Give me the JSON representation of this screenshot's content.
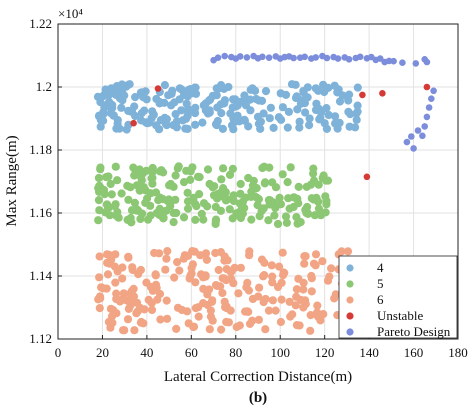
{
  "chart_data": {
    "type": "scatter",
    "xlabel": "Lateral Correction Distance(m)",
    "ylabel": "Max Range(m)",
    "exponent_label": "×10⁴",
    "caption": "(b)",
    "xlim": [
      0,
      180
    ],
    "ylim": [
      11200,
      12200
    ],
    "x_ticks": [
      "0",
      "20",
      "40",
      "60",
      "80",
      "100",
      "120",
      "140",
      "160",
      "180"
    ],
    "y_ticks": [
      "1.12",
      "1.14",
      "1.16",
      "1.18",
      "1.2",
      "1.22"
    ],
    "grid": true,
    "legend_position": "bottom-right",
    "series": [
      {
        "name": "4",
        "color": "#7fb2d8",
        "points": []
      },
      {
        "name": "5",
        "color": "#8cc774",
        "points": []
      },
      {
        "name": "6",
        "color": "#f2a585",
        "points": []
      },
      {
        "name": "Unstable",
        "color": "#d63a36",
        "points": [
          [
            34,
            11885
          ],
          [
            45,
            11995
          ],
          [
            137,
            11975
          ],
          [
            146,
            11980
          ],
          [
            139,
            11715
          ],
          [
            166,
            12000
          ]
        ]
      },
      {
        "name": "Pareto Design",
        "color": "#7b8ddb",
        "points": [
          [
            70,
            12085
          ],
          [
            72,
            12093
          ],
          [
            75,
            12098
          ],
          [
            78,
            12095
          ],
          [
            80,
            12090
          ],
          [
            82,
            12097
          ],
          [
            85,
            12094
          ],
          [
            88,
            12098
          ],
          [
            90,
            12091
          ],
          [
            92,
            12096
          ],
          [
            95,
            12093
          ],
          [
            98,
            12097
          ],
          [
            100,
            12090
          ],
          [
            102,
            12095
          ],
          [
            104,
            12097
          ],
          [
            106,
            12092
          ],
          [
            109,
            12093
          ],
          [
            111,
            12096
          ],
          [
            114,
            12090
          ],
          [
            116,
            12094
          ],
          [
            119,
            12098
          ],
          [
            121,
            12092
          ],
          [
            124,
            12095
          ],
          [
            126,
            12090
          ],
          [
            129,
            12094
          ],
          [
            131,
            12088
          ],
          [
            134,
            12092
          ],
          [
            136,
            12096
          ],
          [
            139,
            12091
          ],
          [
            141,
            12095
          ],
          [
            143,
            12086
          ],
          [
            145,
            12090
          ],
          [
            147,
            12079
          ],
          [
            149,
            12083
          ],
          [
            161,
            12075
          ],
          [
            165,
            12088
          ],
          [
            166,
            12079
          ],
          [
            151,
            12082
          ],
          [
            155,
            12077
          ],
          [
            157,
            11825
          ],
          [
            159,
            11843
          ],
          [
            160,
            11805
          ],
          [
            162,
            11862
          ],
          [
            164,
            11845
          ],
          [
            165,
            11875
          ],
          [
            166,
            11905
          ],
          [
            167,
            11935
          ],
          [
            168,
            11963
          ],
          [
            169,
            11988
          ]
        ]
      }
    ]
  }
}
